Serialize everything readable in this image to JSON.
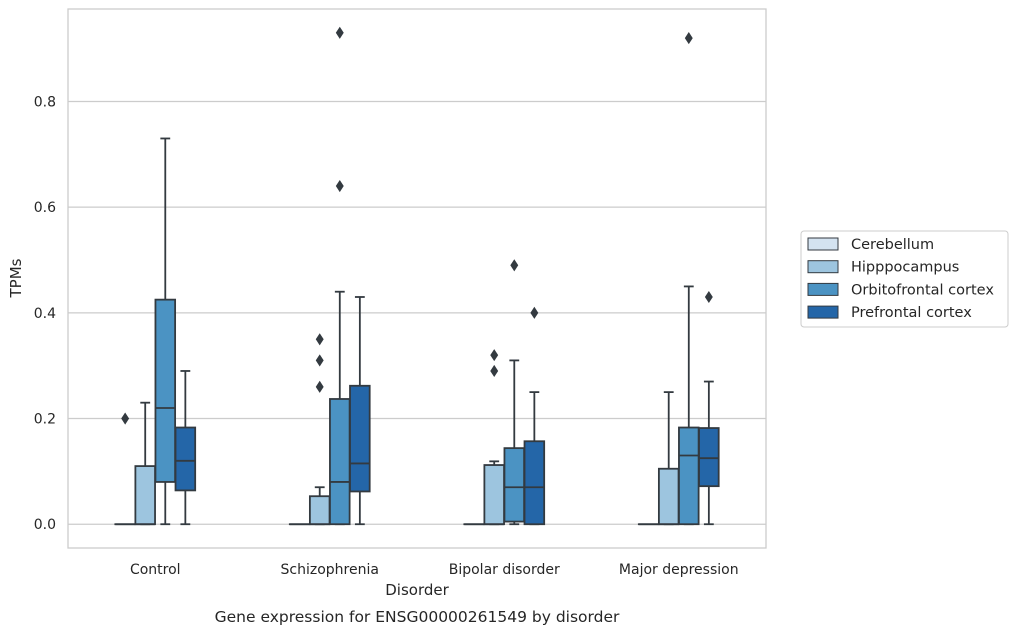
{
  "caption": "Gene expression for ENSG00000261549 by disorder",
  "chart_data": {
    "type": "boxplot",
    "title": "",
    "xlabel": "Disorder",
    "ylabel": "TPMs",
    "ylim": [
      -0.045,
      0.975
    ],
    "yticks": [
      0.0,
      0.2,
      0.4,
      0.6,
      0.8
    ],
    "ytick_labels": [
      "0.0",
      "0.2",
      "0.4",
      "0.6",
      "0.8"
    ],
    "grid": "horizontal",
    "legend_position": "right",
    "categories": [
      "Control",
      "Schizophrenia",
      "Bipolar disorder",
      "Major depression"
    ],
    "series": [
      {
        "name": "Cerebellum",
        "color": "#d4e3f1",
        "boxes": [
          {
            "min": 0.0,
            "q1": 0.0,
            "median": 0.0,
            "q3": 0.0,
            "max": 0.0,
            "outliers": [
              0.2
            ]
          },
          {
            "min": 0.0,
            "q1": 0.0,
            "median": 0.0,
            "q3": 0.0,
            "max": 0.0,
            "outliers": []
          },
          {
            "min": 0.0,
            "q1": 0.0,
            "median": 0.0,
            "q3": 0.0,
            "max": 0.0,
            "outliers": []
          },
          {
            "min": 0.0,
            "q1": 0.0,
            "median": 0.0,
            "q3": 0.0,
            "max": 0.0,
            "outliers": []
          }
        ]
      },
      {
        "name": "Hipppocampus",
        "color": "#9dc5df",
        "boxes": [
          {
            "min": 0.0,
            "q1": 0.0,
            "median": 0.0,
            "q3": 0.11,
            "max": 0.23,
            "outliers": []
          },
          {
            "min": 0.0,
            "q1": 0.0,
            "median": 0.0,
            "q3": 0.053,
            "max": 0.07,
            "outliers": [
              0.26,
              0.31,
              0.35
            ]
          },
          {
            "min": 0.0,
            "q1": 0.0,
            "median": 0.0,
            "q3": 0.112,
            "max": 0.119,
            "outliers": [
              0.29,
              0.32
            ]
          },
          {
            "min": 0.0,
            "q1": 0.0,
            "median": 0.0,
            "q3": 0.105,
            "max": 0.25,
            "outliers": []
          }
        ]
      },
      {
        "name": "Orbitofrontal cortex",
        "color": "#4b93c3",
        "boxes": [
          {
            "min": 0.0,
            "q1": 0.08,
            "median": 0.22,
            "q3": 0.425,
            "max": 0.73,
            "outliers": []
          },
          {
            "min": 0.0,
            "q1": 0.0,
            "median": 0.08,
            "q3": 0.237,
            "max": 0.44,
            "outliers": [
              0.64,
              0.93
            ]
          },
          {
            "min": 0.0,
            "q1": 0.005,
            "median": 0.07,
            "q3": 0.144,
            "max": 0.31,
            "outliers": [
              0.49
            ]
          },
          {
            "min": 0.0,
            "q1": 0.0,
            "median": 0.13,
            "q3": 0.183,
            "max": 0.45,
            "outliers": [
              0.92
            ]
          }
        ]
      },
      {
        "name": "Prefrontal cortex",
        "color": "#2466a8",
        "boxes": [
          {
            "min": 0.0,
            "q1": 0.064,
            "median": 0.12,
            "q3": 0.183,
            "max": 0.29,
            "outliers": []
          },
          {
            "min": 0.0,
            "q1": 0.062,
            "median": 0.115,
            "q3": 0.262,
            "max": 0.43,
            "outliers": []
          },
          {
            "min": 0.0,
            "q1": 0.0,
            "median": 0.07,
            "q3": 0.157,
            "max": 0.25,
            "outliers": [
              0.4
            ]
          },
          {
            "min": 0.0,
            "q1": 0.072,
            "median": 0.125,
            "q3": 0.182,
            "max": 0.27,
            "outliers": [
              0.43
            ]
          }
        ]
      }
    ],
    "box_edge_color": "#333a40",
    "grid_color": "#cccccc"
  }
}
